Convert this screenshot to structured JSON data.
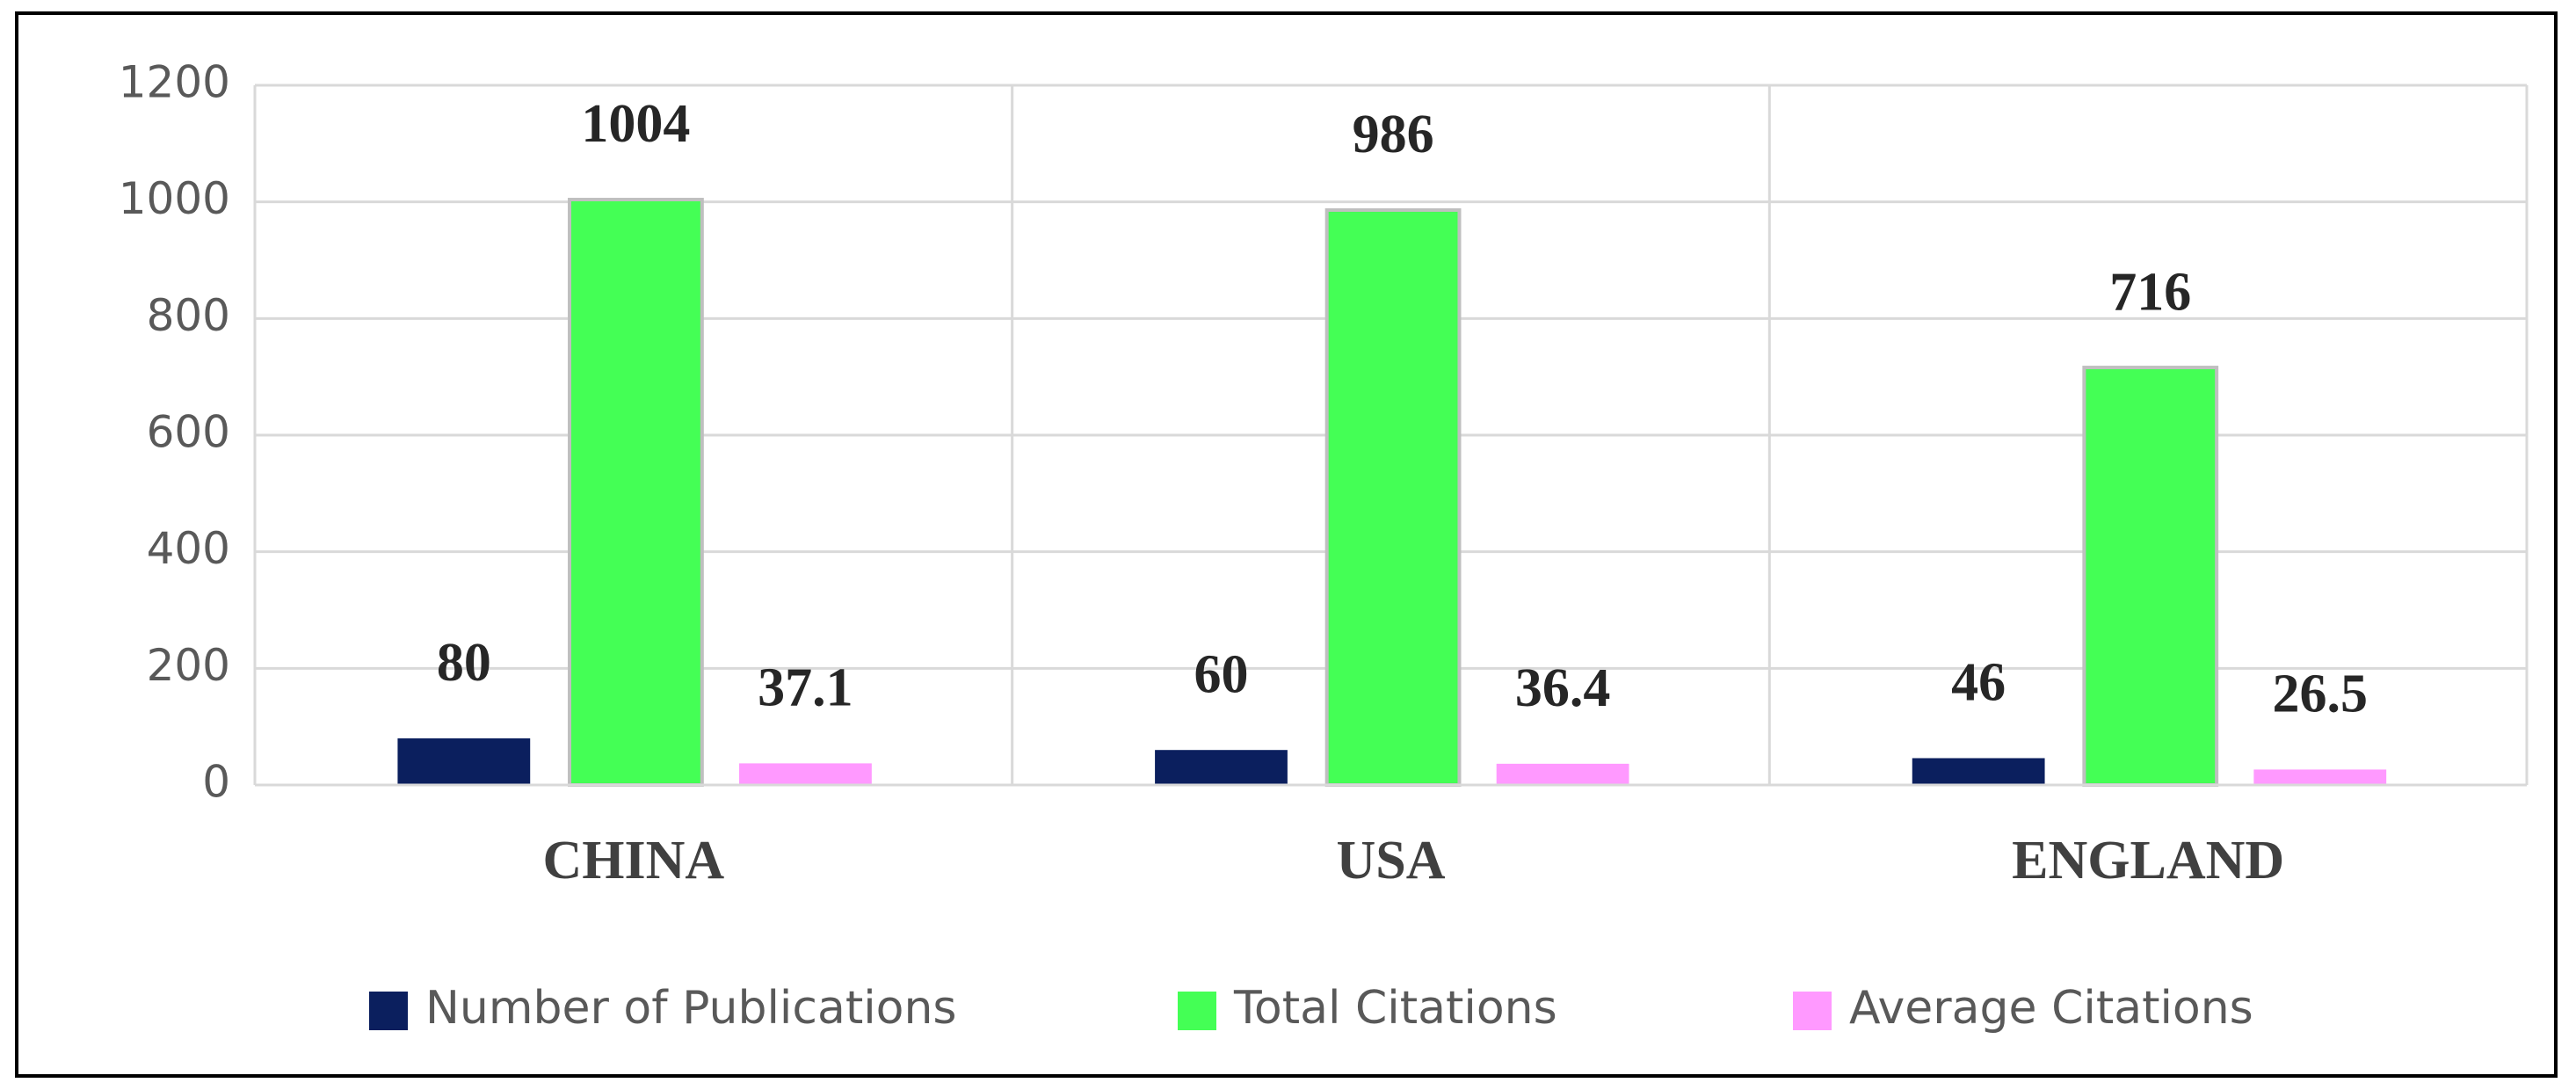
{
  "chart_data": {
    "type": "bar",
    "categories": [
      "CHINA",
      "USA",
      "ENGLAND"
    ],
    "series": [
      {
        "name": "Number of Publications",
        "color": "#0b1f5e",
        "values": [
          80,
          60,
          46
        ]
      },
      {
        "name": "Total Citations",
        "color": "#44ff55",
        "values": [
          1004,
          986,
          716
        ]
      },
      {
        "name": "Average Citations",
        "color": "#ff99ff",
        "values": [
          37.1,
          36.4,
          26.5
        ]
      }
    ],
    "ylim": [
      0,
      1200
    ],
    "yticks": [
      0,
      200,
      400,
      600,
      800,
      1000,
      1200
    ],
    "grid": true,
    "legend": "bottom"
  }
}
